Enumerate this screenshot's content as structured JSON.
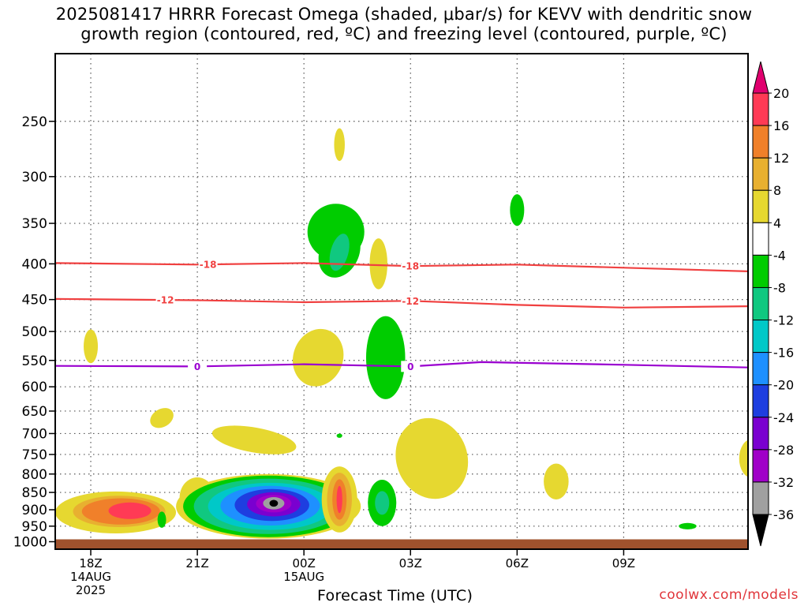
{
  "chart_data": {
    "type": "heatmap",
    "title_line1": "2025081417 HRRR Forecast Omega (shaded, μbar/s) for KEVV with dendritic snow",
    "title_line2": "growth region (contoured, red, ºC) and freezing level (contoured, purple, ºC)",
    "xlabel": "Forecast Time (UTC)",
    "credit": "coolwx.com/models",
    "y_ticks": [
      250,
      300,
      350,
      400,
      450,
      500,
      550,
      600,
      650,
      700,
      750,
      800,
      850,
      900,
      950,
      1000
    ],
    "y_range_hpa": [
      1025,
      200
    ],
    "y_scale": "log",
    "x_range_hours": [
      -1.0,
      18.5
    ],
    "x_ticks": [
      {
        "hour": 0,
        "label": "18Z",
        "sub1": "14AUG",
        "sub2": "2025"
      },
      {
        "hour": 3,
        "label": "21Z",
        "sub1": "",
        "sub2": ""
      },
      {
        "hour": 6,
        "label": "00Z",
        "sub1": "15AUG",
        "sub2": ""
      },
      {
        "hour": 9,
        "label": "03Z",
        "sub1": "",
        "sub2": ""
      },
      {
        "hour": 12,
        "label": "06Z",
        "sub1": "",
        "sub2": ""
      },
      {
        "hour": 15,
        "label": "09Z",
        "sub1": "",
        "sub2": ""
      }
    ],
    "grid": true,
    "surface_color": "#a0522d",
    "surface_pressure_hpa": 1000,
    "colorbar": {
      "labels": [
        20,
        16,
        12,
        8,
        4,
        -4,
        -8,
        -12,
        -16,
        -20,
        -24,
        -28,
        -32,
        -36
      ],
      "colors": [
        "#ff3a55",
        "#f0802a",
        "#e8b030",
        "#e6d830",
        "#ffffff",
        "#00cc00",
        "#10c880",
        "#00c8c8",
        "#1e90ff",
        "#1e3ee0",
        "#7a00d0",
        "#a000c8",
        "#a0a0a0"
      ],
      "top_arrow_color": "#e0006e",
      "bottom_arrow_color": "#000000"
    },
    "contours": [
      {
        "name": "-18",
        "color": "#f04040",
        "label_hours": [
          3.3,
          9.0
        ],
        "points": [
          [
            -1,
            399
          ],
          [
            3,
            401
          ],
          [
            6,
            399
          ],
          [
            9,
            403
          ],
          [
            12,
            401
          ],
          [
            18.5,
            410
          ]
        ]
      },
      {
        "name": "-12",
        "color": "#f04040",
        "label_hours": [
          2.1,
          9.0
        ],
        "points": [
          [
            -1,
            449
          ],
          [
            3,
            451
          ],
          [
            6,
            454
          ],
          [
            9,
            452
          ],
          [
            12,
            458
          ],
          [
            15,
            462
          ],
          [
            18.5,
            460
          ]
        ]
      },
      {
        "name": "0",
        "color": "#9a00d0",
        "label_hours": [
          3.0,
          9.0
        ],
        "points": [
          [
            -1,
            560
          ],
          [
            3,
            561
          ],
          [
            6,
            557
          ],
          [
            9,
            561
          ],
          [
            11,
            553
          ],
          [
            15,
            558
          ],
          [
            18.5,
            563
          ]
        ]
      }
    ],
    "blobs": [
      {
        "hour": -0.2,
        "p": 910,
        "dh": 0.15,
        "dp": 40,
        "rot": 0,
        "value": 8
      },
      {
        "hour": 0.7,
        "p": 908,
        "dh": 1.7,
        "dp": 65,
        "rot": 0,
        "value": 4
      },
      {
        "hour": 0.8,
        "p": 905,
        "dh": 1.3,
        "dp": 48,
        "rot": 0,
        "value": 8
      },
      {
        "hour": 0.85,
        "p": 905,
        "dh": 1.1,
        "dp": 40,
        "rot": 0,
        "value": 12
      },
      {
        "hour": 1.1,
        "p": 903,
        "dh": 0.6,
        "dp": 25,
        "rot": 0,
        "value": 16
      },
      {
        "hour": 0.0,
        "p": 525,
        "dh": 0.2,
        "dp": 30,
        "rot": 0,
        "value": 4
      },
      {
        "hour": 2.0,
        "p": 665,
        "dh": 0.35,
        "dp": 20,
        "rot": -30,
        "value": 4
      },
      {
        "hour": 2.0,
        "p": 930,
        "dh": 0.12,
        "dp": 25,
        "rot": 0,
        "value": -4
      },
      {
        "hour": 3.0,
        "p": 865,
        "dh": 0.5,
        "dp": 60,
        "rot": 0,
        "value": 4
      },
      {
        "hour": 3.0,
        "p": 865,
        "dh": 0.2,
        "dp": 25,
        "rot": 0,
        "value": 8
      },
      {
        "hour": 4.6,
        "p": 715,
        "dh": 1.2,
        "dp": 30,
        "rot": 10,
        "value": 4
      },
      {
        "hour": 5.0,
        "p": 890,
        "dh": 2.6,
        "dp": 100,
        "rot": 0,
        "value": 4
      },
      {
        "hour": 5.0,
        "p": 890,
        "dh": 2.4,
        "dp": 95,
        "rot": 0,
        "value": -4
      },
      {
        "hour": 5.0,
        "p": 890,
        "dh": 2.1,
        "dp": 85,
        "rot": 0,
        "value": -8
      },
      {
        "hour": 5.05,
        "p": 890,
        "dh": 1.75,
        "dp": 72,
        "rot": 0,
        "value": -12
      },
      {
        "hour": 5.05,
        "p": 888,
        "dh": 1.4,
        "dp": 60,
        "rot": 0,
        "value": -16
      },
      {
        "hour": 5.1,
        "p": 886,
        "dh": 1.05,
        "dp": 48,
        "rot": 0,
        "value": -20
      },
      {
        "hour": 5.15,
        "p": 884,
        "dh": 0.75,
        "dp": 36,
        "rot": 0,
        "value": -24
      },
      {
        "hour": 5.15,
        "p": 882,
        "dh": 0.5,
        "dp": 26,
        "rot": 0,
        "value": -28
      },
      {
        "hour": 5.15,
        "p": 881,
        "dh": 0.3,
        "dp": 18,
        "rot": 0,
        "value": -32
      },
      {
        "hour": 5.15,
        "p": 881,
        "dh": 0.12,
        "dp": 10,
        "rot": 0,
        "value": -36
      },
      {
        "hour": 6.4,
        "p": 545,
        "dh": 0.7,
        "dp": 55,
        "rot": 20,
        "value": 4
      },
      {
        "hour": 6.9,
        "p": 360,
        "dh": 0.8,
        "dp": 35,
        "rot": 0,
        "value": -4
      },
      {
        "hour": 7.0,
        "p": 385,
        "dh": 0.55,
        "dp": 35,
        "rot": 25,
        "value": -4
      },
      {
        "hour": 7.0,
        "p": 385,
        "dh": 0.25,
        "dp": 25,
        "rot": 15,
        "value": -8
      },
      {
        "hour": 7.0,
        "p": 270,
        "dh": 0.15,
        "dp": 15,
        "rot": 0,
        "value": 4
      },
      {
        "hour": 7.0,
        "p": 705,
        "dh": 0.08,
        "dp": 5,
        "rot": 0,
        "value": -4
      },
      {
        "hour": 7.0,
        "p": 870,
        "dh": 0.5,
        "dp": 100,
        "rot": 0,
        "value": 4
      },
      {
        "hour": 7.0,
        "p": 870,
        "dh": 0.35,
        "dp": 80,
        "rot": 0,
        "value": 8
      },
      {
        "hour": 7.0,
        "p": 870,
        "dh": 0.2,
        "dp": 60,
        "rot": 0,
        "value": 12
      },
      {
        "hour": 7.0,
        "p": 870,
        "dh": 0.08,
        "dp": 40,
        "rot": 0,
        "value": 16
      },
      {
        "hour": 8.1,
        "p": 400,
        "dh": 0.25,
        "dp": 35,
        "rot": 0,
        "value": 4
      },
      {
        "hour": 8.3,
        "p": 545,
        "dh": 0.55,
        "dp": 80,
        "rot": 0,
        "value": -4
      },
      {
        "hour": 8.2,
        "p": 880,
        "dh": 0.4,
        "dp": 70,
        "rot": 0,
        "value": -4
      },
      {
        "hour": 8.2,
        "p": 880,
        "dh": 0.2,
        "dp": 35,
        "rot": 0,
        "value": -8
      },
      {
        "hour": 9.6,
        "p": 760,
        "dh": 1.0,
        "dp": 110,
        "rot": -20,
        "value": 4
      },
      {
        "hour": 12.0,
        "p": 335,
        "dh": 0.2,
        "dp": 18,
        "rot": 0,
        "value": -4
      },
      {
        "hour": 13.1,
        "p": 820,
        "dh": 0.35,
        "dp": 50,
        "rot": 0,
        "value": 4
      },
      {
        "hour": 16.8,
        "p": 950,
        "dh": 0.25,
        "dp": 10,
        "rot": 0,
        "value": -4
      },
      {
        "hour": 18.6,
        "p": 760,
        "dh": 0.35,
        "dp": 50,
        "rot": 0,
        "value": 4
      }
    ]
  }
}
